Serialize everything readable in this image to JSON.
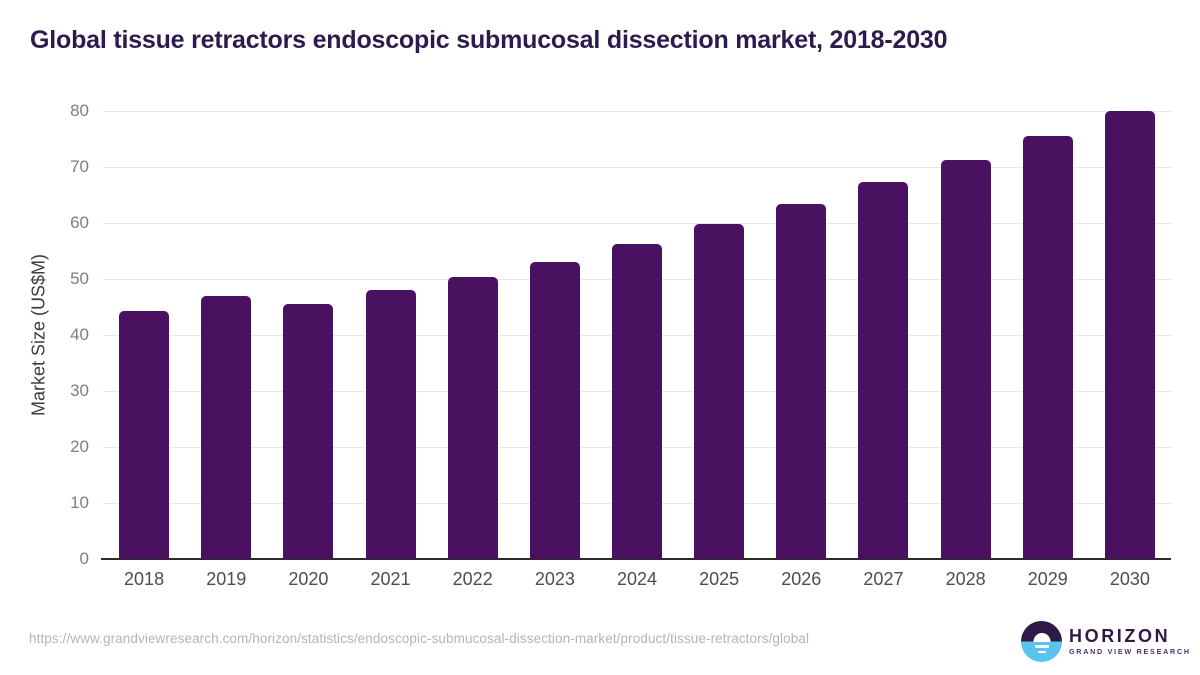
{
  "title": "Global tissue retractors endoscopic submucosal dissection market, 2018-2030",
  "chart_data": {
    "type": "bar",
    "title": "Global tissue retractors endoscopic submucosal dissection market, 2018-2030",
    "categories": [
      "2018",
      "2019",
      "2020",
      "2021",
      "2022",
      "2023",
      "2024",
      "2025",
      "2026",
      "2027",
      "2028",
      "2029",
      "2030"
    ],
    "values": [
      44.2,
      47.0,
      45.5,
      48.0,
      50.3,
      53.1,
      56.3,
      59.8,
      63.4,
      67.3,
      71.2,
      75.5,
      80.0
    ],
    "xlabel": "",
    "ylabel": "Market Size (US$M)",
    "ylim": [
      0,
      80
    ],
    "ytick_step": 10,
    "yticks": [
      0,
      10,
      20,
      30,
      40,
      50,
      60,
      70,
      80
    ],
    "grid": "horizontal-light",
    "legend": "none",
    "bar_color": "#4a1160"
  },
  "footer": {
    "source_url": "https://www.grandviewresearch.com/horizon/statistics/endoscopic-submucosal-dissection-market/product/tissue-retractors/global",
    "logo": {
      "brand": "HORIZON",
      "sub": "GRAND VIEW RESEARCH"
    }
  },
  "colors": {
    "bar": "#4a1160",
    "title_text": "#2d1b4e",
    "y_tick_text": "#7e7e7e",
    "x_tick_text": "#4d4d4d",
    "y_axis_title_text": "#3d3d3d",
    "gridline": "#e9e9e9",
    "axis_line": "#2b2b2b",
    "source_url_text": "#b4b4b4",
    "logo_dark_purple": "#2e1a47",
    "logo_purple": "#4d2d71",
    "logo_blue": "#5ac4ef",
    "background": "#ffffff"
  }
}
